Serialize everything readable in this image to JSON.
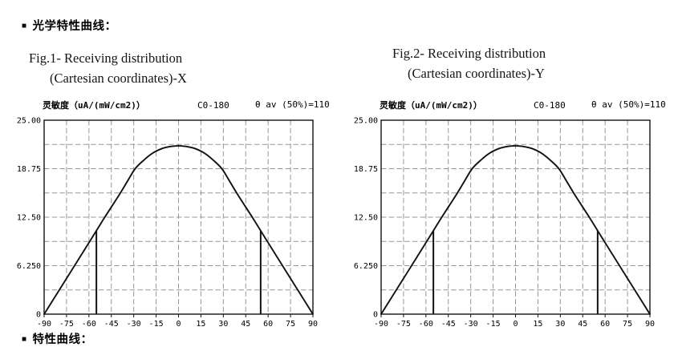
{
  "header": {
    "bullet": "■",
    "title": "光学特性曲线："
  },
  "figures": [
    {
      "id": "fig1",
      "title_line1": "Fig.1- Receiving distribution",
      "title_line2": "(Cartesian coordinates)-X",
      "y_axis_title": "灵敏度（uA/(mW/cm2)）",
      "plane_label": "C0-180",
      "theta_label": "θ av (50%)=110"
    },
    {
      "id": "fig2",
      "title_line1": "Fig.2- Receiving distribution",
      "title_line2": "(Cartesian coordinates)-Y",
      "y_axis_title": "灵敏度（uA/(mW/cm2)）",
      "plane_label": "C0-180",
      "theta_label": "θ av (50%)=110"
    }
  ],
  "next_section": {
    "bullet": "■",
    "clipped_text": "特性曲线："
  },
  "colors": {
    "curve": "#111111",
    "grid": "#979797",
    "axis": "#111111",
    "background": "#ffffff"
  },
  "chart_data": [
    {
      "type": "line",
      "title": "Fig.1- Receiving distribution (Cartesian coordinates)-X",
      "ylabel": "灵敏度（uA/(mW/cm2)）",
      "plane": "C0-180",
      "half_angle_note": "θ av (50%)=110",
      "xlim": [
        -90,
        90
      ],
      "ylim": [
        0,
        25
      ],
      "x_tick_labels": [
        "-90",
        "-75",
        "-60",
        "-45",
        "-30",
        "-15",
        "0",
        "15",
        "30",
        "45",
        "60",
        "75",
        "90"
      ],
      "x_tick_values": [
        -90,
        -75,
        -60,
        -45,
        -30,
        -15,
        0,
        15,
        30,
        45,
        60,
        75,
        90
      ],
      "y_tick_labels": [
        "25.00",
        "18.75",
        "12.50",
        "6.250",
        "0"
      ],
      "y_tick_values": [
        25,
        18.75,
        12.5,
        6.25,
        0
      ],
      "grid": {
        "on": true,
        "x_step": 15,
        "y_step": 3.125,
        "style": "dashed"
      },
      "series": [
        {
          "name": "receiving-distribution",
          "peak": 21.7,
          "points": [
            [
              -90,
              0
            ],
            [
              -75,
              4.6
            ],
            [
              -60,
              9.2
            ],
            [
              -50,
              12.3
            ],
            [
              -40,
              15.3
            ],
            [
              -34,
              17.2
            ],
            [
              -29,
              18.75
            ],
            [
              -23,
              19.9
            ],
            [
              -17,
              20.8
            ],
            [
              -11,
              21.35
            ],
            [
              -5,
              21.62
            ],
            [
              0,
              21.7
            ],
            [
              5,
              21.62
            ],
            [
              11,
              21.35
            ],
            [
              17,
              20.8
            ],
            [
              23,
              19.9
            ],
            [
              29,
              18.75
            ],
            [
              34,
              17.2
            ],
            [
              40,
              15.3
            ],
            [
              50,
              12.3
            ],
            [
              60,
              9.2
            ],
            [
              75,
              4.6
            ],
            [
              90,
              0
            ]
          ]
        }
      ],
      "half_power_markers": [
        {
          "x": -55,
          "y0": 0,
          "y1": 10.7
        },
        {
          "x": 55,
          "y0": 0,
          "y1": 10.7
        }
      ]
    },
    {
      "type": "line",
      "title": "Fig.2- Receiving distribution (Cartesian coordinates)-Y",
      "ylabel": "灵敏度（uA/(mW/cm2)）",
      "plane": "C0-180",
      "half_angle_note": "θ av (50%)=110",
      "xlim": [
        -90,
        90
      ],
      "ylim": [
        0,
        25
      ],
      "x_tick_labels": [
        "-90",
        "-75",
        "-60",
        "-45",
        "-30",
        "-15",
        "0",
        "15",
        "30",
        "45",
        "60",
        "75",
        "90"
      ],
      "x_tick_values": [
        -90,
        -75,
        -60,
        -45,
        -30,
        -15,
        0,
        15,
        30,
        45,
        60,
        75,
        90
      ],
      "y_tick_labels": [
        "25.00",
        "18.75",
        "12.50",
        "6.250",
        "0"
      ],
      "y_tick_values": [
        25,
        18.75,
        12.5,
        6.25,
        0
      ],
      "grid": {
        "on": true,
        "x_step": 15,
        "y_step": 3.125,
        "style": "dashed"
      },
      "series": [
        {
          "name": "receiving-distribution",
          "peak": 21.7,
          "points": [
            [
              -90,
              0
            ],
            [
              -75,
              4.6
            ],
            [
              -60,
              9.2
            ],
            [
              -50,
              12.3
            ],
            [
              -40,
              15.3
            ],
            [
              -34,
              17.2
            ],
            [
              -29,
              18.75
            ],
            [
              -23,
              19.9
            ],
            [
              -17,
              20.8
            ],
            [
              -11,
              21.35
            ],
            [
              -5,
              21.62
            ],
            [
              0,
              21.7
            ],
            [
              5,
              21.62
            ],
            [
              11,
              21.35
            ],
            [
              17,
              20.8
            ],
            [
              23,
              19.9
            ],
            [
              29,
              18.75
            ],
            [
              34,
              17.2
            ],
            [
              40,
              15.3
            ],
            [
              50,
              12.3
            ],
            [
              60,
              9.2
            ],
            [
              75,
              4.6
            ],
            [
              90,
              0
            ]
          ]
        }
      ],
      "half_power_markers": [
        {
          "x": -55,
          "y0": 0,
          "y1": 10.7
        },
        {
          "x": 55,
          "y0": 0,
          "y1": 10.7
        }
      ]
    }
  ]
}
